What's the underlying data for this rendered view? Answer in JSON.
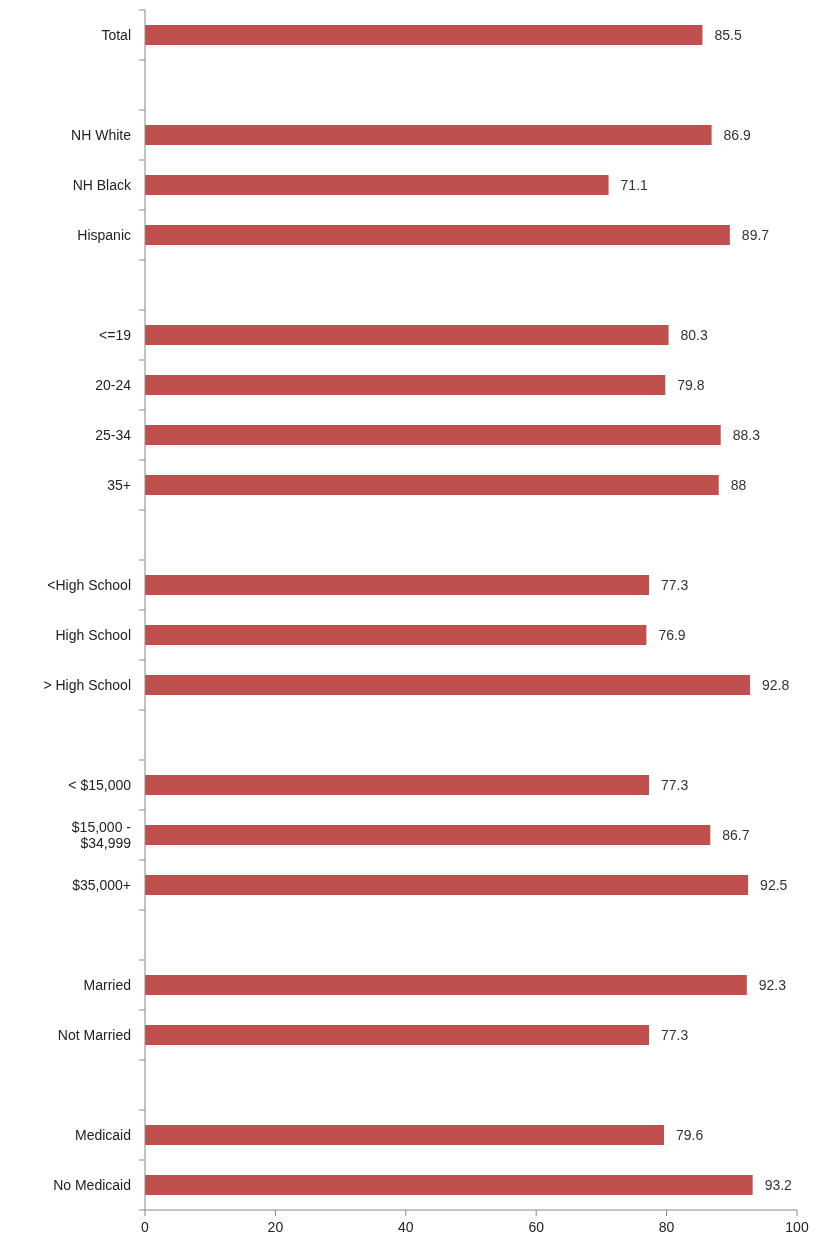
{
  "chart_data": {
    "type": "bar",
    "orientation": "horizontal",
    "categories": [
      "Total",
      null,
      "NH White",
      "NH Black",
      "Hispanic",
      null,
      "<=19",
      "20-24",
      "25-34",
      "35+",
      null,
      "<High School",
      "High School",
      "> High School",
      null,
      "< $15,000",
      "$15,000 - $34,999",
      "$35,000+",
      null,
      "Married",
      "Not Married",
      null,
      "Medicaid",
      "No Medicaid"
    ],
    "values": [
      85.5,
      null,
      86.9,
      71.1,
      89.7,
      null,
      80.3,
      79.8,
      88.3,
      88,
      null,
      77.3,
      76.9,
      92.8,
      null,
      77.3,
      86.7,
      92.5,
      null,
      92.3,
      77.3,
      null,
      79.6,
      93.2
    ],
    "color": "#c0504d",
    "xlim": [
      0,
      100
    ],
    "xticks": [
      0,
      20,
      40,
      60,
      80,
      100
    ],
    "data_labels": true
  }
}
